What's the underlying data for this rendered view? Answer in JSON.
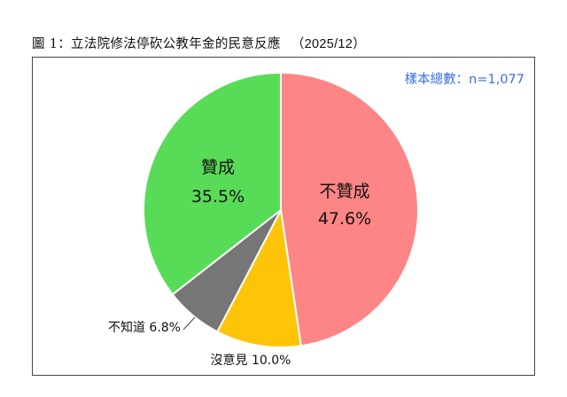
{
  "figure": {
    "title": "圖 1：立法院修法停砍公教年金的民意反應",
    "period": "（2025/12）"
  },
  "sample": "樣本總數：n=1,077",
  "chart_data": {
    "type": "pie",
    "title": "圖 1：立法院修法停砍公教年金的民意反應 （2025/12）",
    "slices": [
      {
        "label": "不贊成",
        "value": 47.6,
        "value_text": "47.6%",
        "color": "#fe8585",
        "label_position": "inside"
      },
      {
        "label": "沒意見",
        "value": 10.0,
        "value_text": "沒意見 10.0%",
        "color": "#fec408",
        "label_position": "outside"
      },
      {
        "label": "不知道",
        "value": 6.8,
        "value_text": "不知道 6.8%",
        "color": "#767676",
        "label_position": "outside"
      },
      {
        "label": "贊成",
        "value": 35.5,
        "value_text": "35.5%",
        "color": "#58dc58",
        "label_position": "inside"
      }
    ],
    "start": "top",
    "direction": "clockwise"
  }
}
